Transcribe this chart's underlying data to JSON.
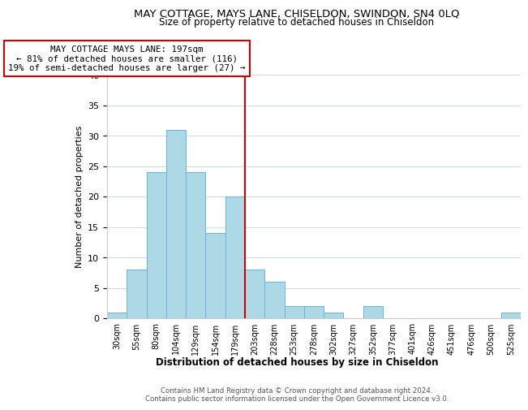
{
  "title": "MAY COTTAGE, MAYS LANE, CHISELDON, SWINDON, SN4 0LQ",
  "subtitle": "Size of property relative to detached houses in Chiseldon",
  "xlabel": "Distribution of detached houses by size in Chiseldon",
  "ylabel": "Number of detached properties",
  "bar_labels": [
    "30sqm",
    "55sqm",
    "80sqm",
    "104sqm",
    "129sqm",
    "154sqm",
    "179sqm",
    "203sqm",
    "228sqm",
    "253sqm",
    "278sqm",
    "302sqm",
    "327sqm",
    "352sqm",
    "377sqm",
    "401sqm",
    "426sqm",
    "451sqm",
    "476sqm",
    "500sqm",
    "525sqm"
  ],
  "bar_values": [
    1,
    8,
    24,
    31,
    24,
    14,
    20,
    8,
    6,
    2,
    2,
    1,
    0,
    2,
    0,
    0,
    0,
    0,
    0,
    0,
    1
  ],
  "bar_color": "#add8e6",
  "bar_edge_color": "#6cb4d8",
  "vline_color": "#cc0000",
  "annotation_title": "MAY COTTAGE MAYS LANE: 197sqm",
  "annotation_line1": "← 81% of detached houses are smaller (116)",
  "annotation_line2": "19% of semi-detached houses are larger (27) →",
  "annotation_box_edge": "#cc0000",
  "ylim": [
    0,
    40
  ],
  "yticks": [
    0,
    5,
    10,
    15,
    20,
    25,
    30,
    35,
    40
  ],
  "footnote1": "Contains HM Land Registry data © Crown copyright and database right 2024.",
  "footnote2": "Contains public sector information licensed under the Open Government Licence v3.0.",
  "bg_color": "#ffffff",
  "grid_color": "#d0dce8"
}
